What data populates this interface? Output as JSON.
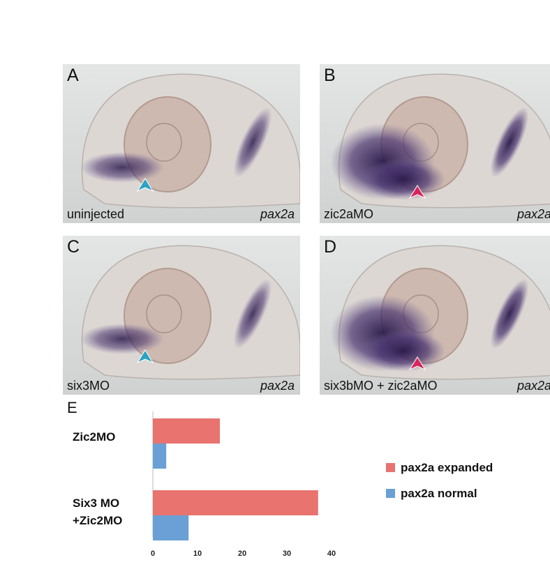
{
  "panels": [
    {
      "letter": "A",
      "condition": "uninjected",
      "gene": "pax2a",
      "arrow_color": "#2aa3c4",
      "stain": "normal"
    },
    {
      "letter": "B",
      "condition": "zic2aMO",
      "gene": "pax2a",
      "arrow_color": "#d8245c",
      "stain": "expanded"
    },
    {
      "letter": "C",
      "condition": "six3MO",
      "gene": "pax2a",
      "arrow_color": "#2aa3c4",
      "stain": "normal"
    },
    {
      "letter": "D",
      "condition": "six3bMO + zic2aMO",
      "gene": "pax2a",
      "arrow_color": "#d8245c",
      "stain": "expanded"
    }
  ],
  "chart_panel_letter": "E",
  "chart_data": {
    "type": "bar",
    "orientation": "horizontal",
    "categories": [
      "Zic2MO",
      "Six3 MO\n+Zic2MO"
    ],
    "series": [
      {
        "name": "pax2a expanded",
        "color": "#e8736f",
        "values": [
          15,
          37
        ]
      },
      {
        "name": "pax2a normal",
        "color": "#6aa0d6",
        "values": [
          3,
          8
        ]
      }
    ],
    "xticks": [
      0,
      10,
      20,
      30,
      40
    ],
    "xlim": [
      0,
      40
    ],
    "grid": false,
    "legend_position": "right"
  }
}
